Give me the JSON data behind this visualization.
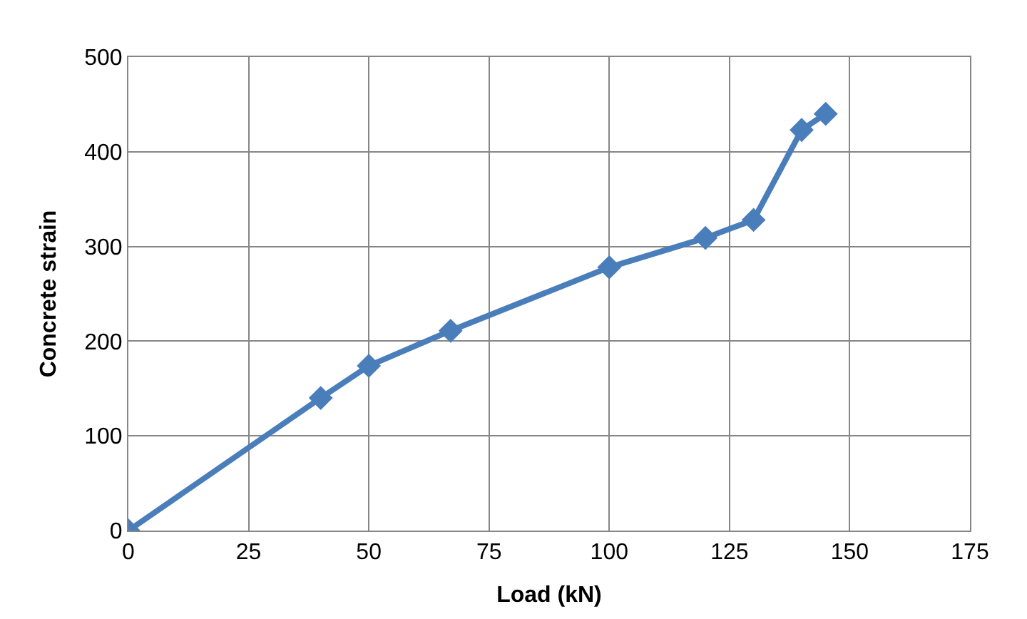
{
  "chart_data": {
    "type": "line",
    "xlabel": "Load (kN)",
    "ylabel": "Concrete strain",
    "x": [
      0,
      40,
      50,
      67,
      100,
      120,
      130,
      140,
      145
    ],
    "series": [
      {
        "color": "#4a7ebb",
        "values": [
          0,
          140,
          174,
          211,
          278,
          309,
          328,
          423,
          440
        ]
      }
    ],
    "xlim": [
      0,
      175
    ],
    "xticks": [
      0,
      25,
      50,
      75,
      100,
      125,
      150,
      175
    ],
    "ylim": [
      0,
      500
    ],
    "yticks": [
      0,
      100,
      200,
      300,
      400,
      500
    ],
    "grid": true,
    "marker": "diamond",
    "line_style": "solid"
  }
}
